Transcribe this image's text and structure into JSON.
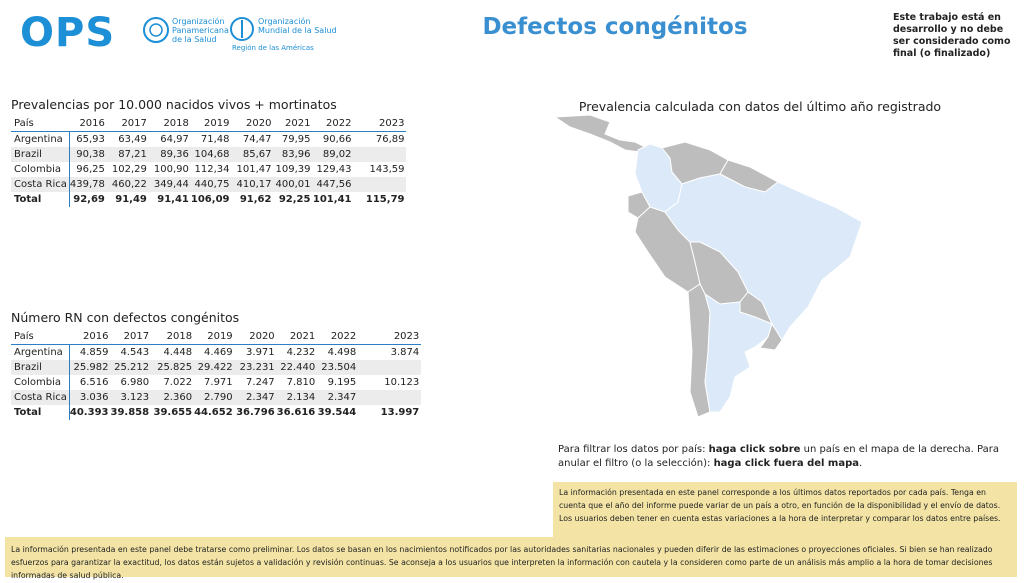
{
  "header": {
    "logo": "OPS",
    "org1": [
      "Organización",
      "Panamericana",
      "de la Salud"
    ],
    "org2": [
      "Organización",
      "Mundial de la Salud"
    ],
    "region": "Región de las Américas",
    "title": "Defectos congénitos",
    "note": "Este trabajo está en desarrollo y no debe ser considerado como final (o finalizado)"
  },
  "table1": {
    "title": "Prevalencias por 10.000 nacidos vivos + mortinatos",
    "columns": [
      "País",
      "2016",
      "2017",
      "2018",
      "2019",
      "2020",
      "2021",
      "2022",
      "2023"
    ],
    "rows": [
      [
        "Argentina",
        "65,93",
        "63,49",
        "64,97",
        "71,48",
        "74,47",
        "79,95",
        "90,66",
        "76,89"
      ],
      [
        "Brazil",
        "90,38",
        "87,21",
        "89,36",
        "104,68",
        "85,67",
        "83,96",
        "89,02",
        null
      ],
      [
        "Colombia",
        "96,25",
        "102,29",
        "100,90",
        "112,34",
        "101,47",
        "109,39",
        "129,43",
        "143,59"
      ],
      [
        "Costa Rica",
        "439,78",
        "460,22",
        "349,44",
        "440,75",
        "410,17",
        "400,01",
        "447,56",
        null
      ]
    ],
    "total": [
      "Total",
      "92,69",
      "91,49",
      "91,41",
      "106,09",
      "91,62",
      "92,25",
      "101,41",
      "115,79"
    ]
  },
  "table2": {
    "title": "Número RN con defectos congénitos",
    "columns": [
      "País",
      "2016",
      "2017",
      "2018",
      "2019",
      "2020",
      "2021",
      "2022",
      "2023"
    ],
    "rows": [
      [
        "Argentina",
        "4.859",
        "4.543",
        "4.448",
        "4.469",
        "3.971",
        "4.232",
        "4.498",
        "3.874"
      ],
      [
        "Brazil",
        "25.982",
        "25.212",
        "25.825",
        "29.422",
        "23.231",
        "22.440",
        "23.504",
        null
      ],
      [
        "Colombia",
        "6.516",
        "6.980",
        "7.022",
        "7.971",
        "7.247",
        "7.810",
        "9.195",
        "10.123"
      ],
      [
        "Costa Rica",
        "3.036",
        "3.123",
        "2.360",
        "2.790",
        "2.347",
        "2.134",
        "2.347",
        null
      ]
    ],
    "total": [
      "Total",
      "40.393",
      "39.858",
      "39.655",
      "44.652",
      "36.796",
      "36.616",
      "39.544",
      "13.997"
    ]
  },
  "map": {
    "title": "Prevalencia calculada con datos del último año registrado"
  },
  "filter_text": [
    "Para filtrar los datos por país: ",
    "haga click sobre",
    " un país en el mapa de la derecha. Para anular el filtro (o la selección): ",
    "haga click fuera del mapa",
    "."
  ],
  "notes": [
    "La información presentada en este panel corresponde a los últimos datos reportados por cada país. Tenga en cuenta que el año del informe puede variar de un país a otro, en función de la disponibilidad y el envío de datos. Los usuarios deben tener en cuenta estas variaciones a la hora de interpretar y comparar los datos entre países.",
    "La información presentada en este panel debe tratarse como preliminar. Los datos se basan en los nacimientos notificados por las autoridades sanitarias nacionales y pueden diferir de las estimaciones o proyecciones oficiales. Si bien se han realizado esfuerzos para garantizar la exactitud, los datos están sujetos a validación y revisión continuas. Se aconseja a los usuarios que interpreten la información con cautela y la consideren como parte de un análisis más amplio a la hora de tomar decisiones informadas de salud pública."
  ]
}
